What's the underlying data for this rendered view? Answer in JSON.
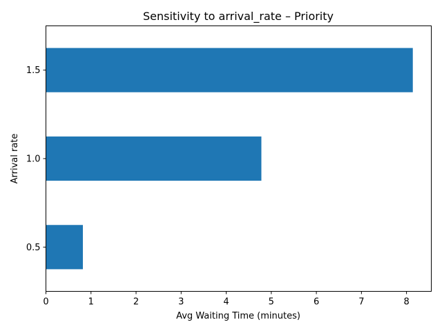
{
  "chart_data": {
    "type": "bar",
    "orientation": "horizontal",
    "title": "Sensitivity to arrival_rate – Priority",
    "xlabel": "Avg Waiting Time (minutes)",
    "ylabel": "Arrival rate",
    "categories": [
      "0.5",
      "1.0",
      "1.5"
    ],
    "values": [
      0.82,
      4.78,
      8.14
    ],
    "xlim": [
      0,
      8.55
    ],
    "xticks": [
      0,
      1,
      2,
      3,
      4,
      5,
      6,
      7,
      8
    ],
    "bar_color": "#1f77b4",
    "grid": false,
    "legend": "none"
  }
}
